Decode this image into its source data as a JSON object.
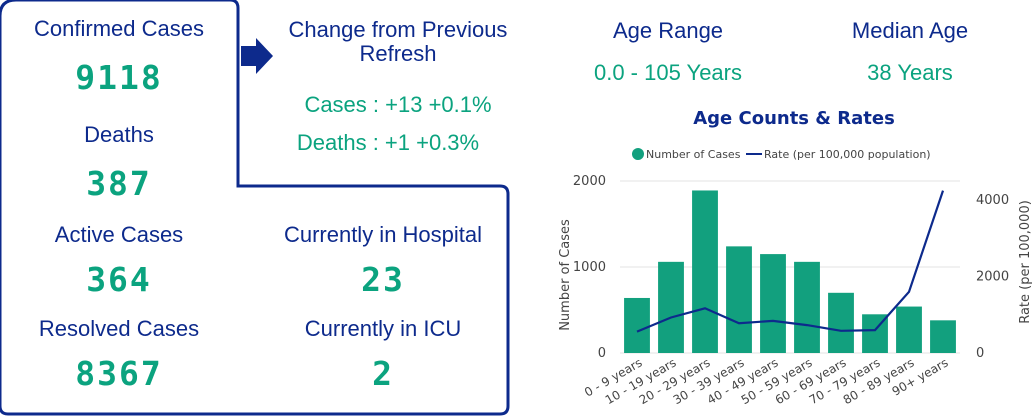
{
  "stats": {
    "confirmed_label": "Confirmed Cases",
    "confirmed_value": "9118",
    "deaths_label": "Deaths",
    "deaths_value": "387",
    "active_label": "Active Cases",
    "active_value": "364",
    "resolved_label": "Resolved Cases",
    "resolved_value": "8367",
    "hospital_label": "Currently in Hospital",
    "hospital_value": "23",
    "icu_label": "Currently in ICU",
    "icu_value": "2"
  },
  "change": {
    "title_line1": "Change from Previous",
    "title_line2": "Refresh",
    "cases": "Cases : +13 +0.1%",
    "deaths": "Deaths : +1 +0.3%"
  },
  "age": {
    "range_label": "Age Range",
    "range_value": "0.0 - 105 Years",
    "median_label": "Median Age",
    "median_value": "38 Years"
  },
  "colors": {
    "navy": "#0d2a8c",
    "green": "#0ba37f",
    "bar": "#12a07e",
    "line": "#0d2a8c"
  },
  "chart_data": {
    "type": "bar",
    "title": "Age Counts & Rates",
    "categories": [
      "0 - 9 years",
      "10 - 19 years",
      "20 - 29 years",
      "30 - 39 years",
      "40 - 49 years",
      "50 - 59 years",
      "60 - 69 years",
      "70 - 79 years",
      "80 - 89 years",
      "90+ years"
    ],
    "series": [
      {
        "name": "Number of Cases",
        "type": "bar",
        "axis": "left",
        "values": [
          640,
          1060,
          1890,
          1240,
          1150,
          1060,
          700,
          450,
          540,
          380
        ]
      },
      {
        "name": "Rate (per 100,000 population)",
        "type": "line",
        "axis": "right",
        "values": [
          560,
          930,
          1170,
          780,
          840,
          730,
          580,
          600,
          1600,
          4250
        ]
      }
    ],
    "ylabel": "Number of Cases",
    "ylabel_right": "Rate (per 100,000)",
    "ylim": [
      0,
      2000
    ],
    "ylim_right": [
      0,
      4500
    ],
    "yticks": [
      0,
      1000,
      2000
    ],
    "yticks_right": [
      0,
      2000,
      4000
    ],
    "grid": true,
    "legend": "top"
  }
}
